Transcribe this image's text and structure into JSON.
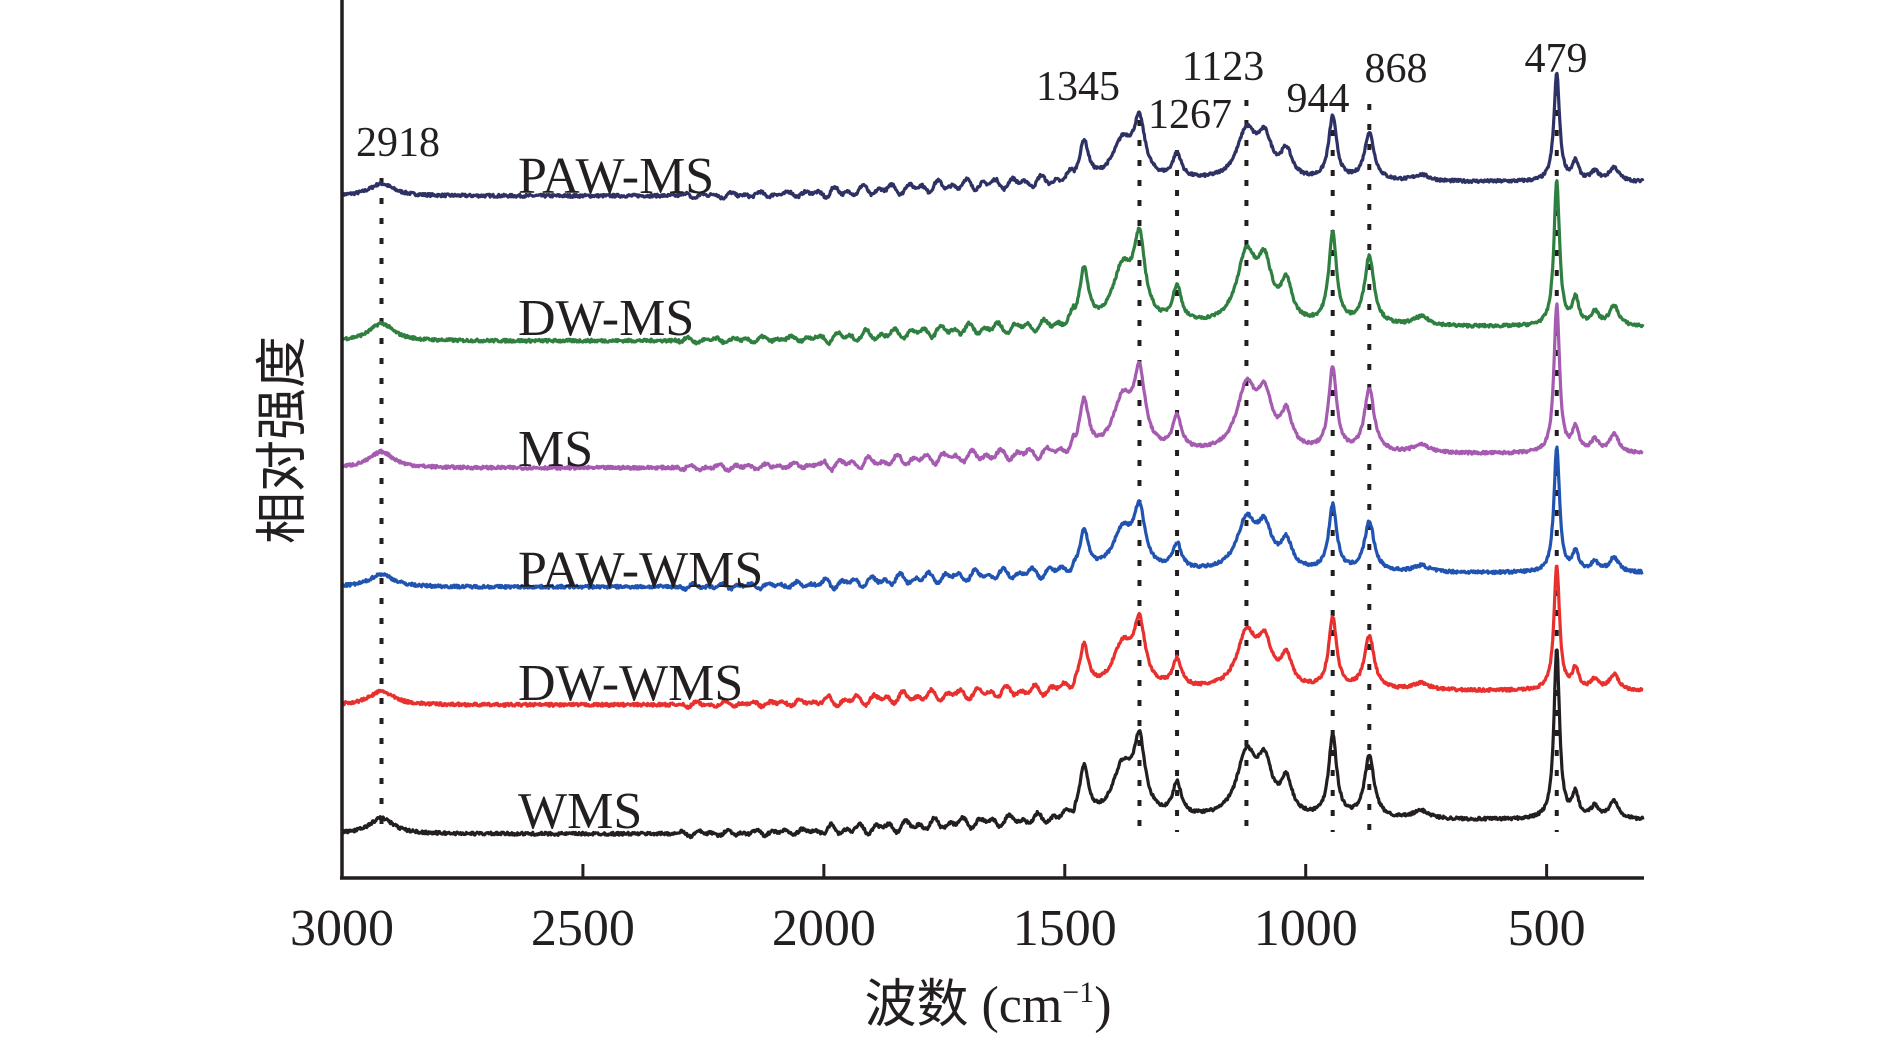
{
  "chart_data": {
    "type": "line",
    "title": "",
    "xlabel": "波数 (cm⁻¹)",
    "xlabel_main": "波数 (cm",
    "xlabel_sup": "−1",
    "xlabel_close": ")",
    "ylabel": "相对强度",
    "xlim": [
      3000,
      300
    ],
    "ylim": [
      0,
      878
    ],
    "x_reversed": true,
    "grid": false,
    "xticks": [
      3000,
      2500,
      2000,
      1500,
      1000,
      500
    ],
    "xtick_labels": [
      "3000",
      "2500",
      "2000",
      "1500",
      "1000",
      "500"
    ],
    "peak_markers": [
      {
        "label": "2918",
        "x": 2918
      },
      {
        "label": "1345",
        "x": 1345
      },
      {
        "label": "1267",
        "x": 1267
      },
      {
        "label": "1123",
        "x": 1123
      },
      {
        "label": "944",
        "x": 944
      },
      {
        "label": "868",
        "x": 868
      },
      {
        "label": "479",
        "x": 479
      }
    ],
    "band_model_note": "reference band intensities (a.u.) for WMS; other series scaled",
    "bands": [
      [
        2918,
        16,
        30
      ],
      [
        1460,
        50,
        11
      ],
      [
        1380,
        50,
        25
      ],
      [
        1345,
        70,
        14
      ],
      [
        1267,
        32,
        11
      ],
      [
        1123,
        62,
        24
      ],
      [
        1085,
        48,
        18
      ],
      [
        1040,
        34,
        14
      ],
      [
        944,
        82,
        10
      ],
      [
        868,
        62,
        12
      ],
      [
        760,
        8,
        20
      ],
      [
        479,
        170,
        7
      ],
      [
        440,
        24,
        8
      ],
      [
        400,
        12,
        10
      ],
      [
        360,
        18,
        12
      ]
    ],
    "series": [
      {
        "name": "PAW-MS",
        "color": "#2e3163",
        "offset": 682,
        "scale": 0.77,
        "peak479": 108
      },
      {
        "name": "DW-MS",
        "color": "#2f8040",
        "offset": 537,
        "scale": 1.1,
        "peak479": 145
      },
      {
        "name": "MS",
        "color": "#a45bb0",
        "offset": 410,
        "scale": 1.02,
        "peak479": 148
      },
      {
        "name": "PAW-WMS",
        "color": "#2154b0",
        "offset": 291,
        "scale": 0.8,
        "peak479": 125
      },
      {
        "name": "DW-WMS",
        "color": "#e8302e",
        "offset": 173,
        "scale": 0.86,
        "peak479": 125
      },
      {
        "name": "WMS",
        "color": "#231f20",
        "offset": 44,
        "scale": 1.0,
        "peak479": 170
      }
    ]
  }
}
